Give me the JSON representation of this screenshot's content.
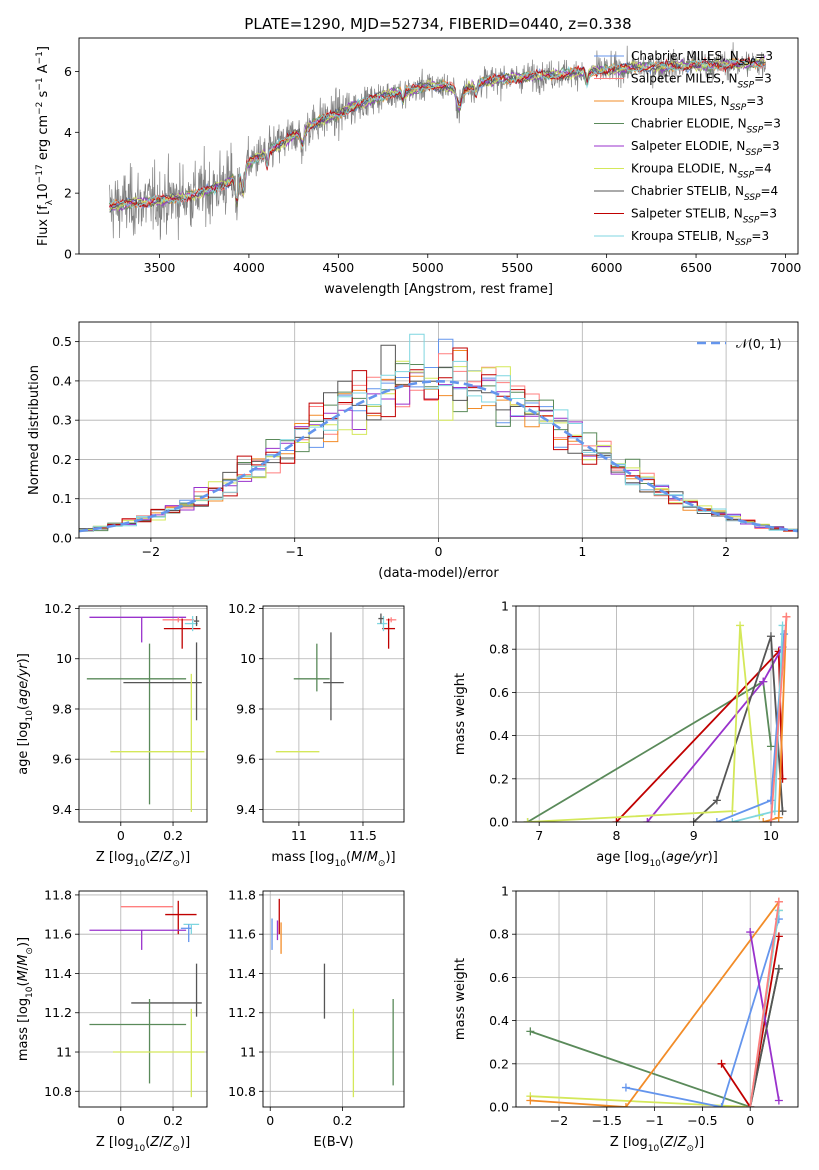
{
  "figure_title": "PLATE=1290, MJD=52734, FIBERID=0440, z=0.338",
  "model_colors": {
    "Chabrier MILES": "#6495ed",
    "Salpeter MILES": "#ff7f7f",
    "Kroupa MILES": "#f28c28",
    "Chabrier ELODIE": "#5a8a5a",
    "Salpeter ELODIE": "#9932cc",
    "Kroupa ELODIE": "#d4e85a",
    "Chabrier STELIB": "#555555",
    "Salpeter STELIB": "#c00000",
    "Kroupa STELIB": "#7fd6e0"
  },
  "chart_data": [
    {
      "id": "spectrum",
      "type": "line",
      "xlabel": "wavelength [Angstrom, rest frame]",
      "ylabel": "Flux [f_λ 10^-17 erg cm^-2 s^-1 A^-1]",
      "xlim": [
        3050,
        7070
      ],
      "ylim": [
        0,
        7.1
      ],
      "xticks": [
        3500,
        4000,
        4500,
        5000,
        5500,
        6000,
        6500,
        7000
      ],
      "yticks": [
        0,
        2,
        4,
        6
      ],
      "grid": false,
      "legend_position": "top-right",
      "data_color": "#808080",
      "continuum_points": {
        "x": [
          3220,
          3300,
          3400,
          3500,
          3600,
          3700,
          3800,
          3900,
          4000,
          4100,
          4200,
          4300,
          4400,
          4500,
          4600,
          4700,
          4800,
          4900,
          5000,
          5100,
          5200,
          5300,
          5400,
          5500,
          5600,
          5700,
          5800,
          5900,
          6000,
          6100,
          6200,
          6300,
          6400,
          6500,
          6600,
          6700,
          6800,
          6900
        ],
        "y": [
          1.55,
          1.65,
          1.7,
          1.75,
          1.85,
          1.95,
          2.15,
          2.4,
          3.0,
          3.35,
          3.7,
          4.1,
          4.4,
          4.6,
          4.9,
          5.1,
          5.3,
          5.35,
          5.55,
          5.5,
          5.4,
          5.65,
          5.75,
          5.8,
          5.85,
          5.9,
          5.95,
          6.0,
          6.05,
          6.1,
          6.15,
          6.15,
          6.2,
          6.2,
          6.2,
          6.25,
          6.25,
          6.3
        ]
      },
      "legend": [
        {
          "label": "Chabrier MILES, N_SSP=3",
          "color": "#6495ed"
        },
        {
          "label": "Salpeter MILES, N_SSP=3",
          "color": "#ff7f7f"
        },
        {
          "label": "Kroupa MILES, N_SSP=3",
          "color": "#f28c28"
        },
        {
          "label": "Chabrier ELODIE, N_SSP=3",
          "color": "#5a8a5a"
        },
        {
          "label": "Salpeter ELODIE, N_SSP=3",
          "color": "#9932cc"
        },
        {
          "label": "Kroupa ELODIE, N_SSP=4",
          "color": "#d4e85a"
        },
        {
          "label": "Chabrier STELIB, N_SSP=4",
          "color": "#555555"
        },
        {
          "label": "Salpeter STELIB, N_SSP=3",
          "color": "#c00000"
        },
        {
          "label": "Kroupa STELIB, N_SSP=3",
          "color": "#7fd6e0"
        }
      ]
    },
    {
      "id": "residuals",
      "type": "histogram",
      "xlabel": "(data-model)/error",
      "ylabel": "Normed distribution",
      "xlim": [
        -2.5,
        2.5
      ],
      "ylim": [
        0,
        0.55
      ],
      "xticks": [
        -2,
        -1,
        0,
        1,
        2
      ],
      "yticks": [
        0.0,
        0.1,
        0.2,
        0.3,
        0.4,
        0.5
      ],
      "grid": true,
      "legend_position": "top-right",
      "reference_label": "𝒩(0, 1)",
      "reference_color": "#6495ed",
      "bin_width": 0.1
    },
    {
      "id": "age_vs_Z",
      "type": "errorbar",
      "xlabel": "Z [log10(Z/Z⊙)]",
      "ylabel": "age [log10(age/yr)]",
      "xlim": [
        -0.16,
        0.33
      ],
      "ylim": [
        9.35,
        10.21
      ],
      "xticks": [
        0.0,
        0.2
      ],
      "yticks": [
        9.4,
        9.6,
        9.8,
        10.0,
        10.2
      ],
      "grid": true,
      "points": [
        {
          "model": "Salpeter ELODIE",
          "x": 0.08,
          "xerr": [
            0.2,
            0.17
          ],
          "y": 10.165,
          "yerr": [
            0.1,
            0.0
          ]
        },
        {
          "model": "Salpeter MILES",
          "x": 0.22,
          "xerr": [
            0.06,
            0.06
          ],
          "y": 10.155,
          "yerr": [
            0.01,
            0.01
          ]
        },
        {
          "model": "Salpeter STELIB",
          "x": 0.235,
          "xerr": [
            0.07,
            0.07
          ],
          "y": 10.12,
          "yerr": [
            0.08,
            0.04
          ]
        },
        {
          "model": "Kroupa STELIB",
          "x": 0.275,
          "xerr": [
            0.03,
            0.02
          ],
          "y": 10.14,
          "yerr": [
            0.03,
            0.03
          ]
        },
        {
          "model": "Chabrier STELIB",
          "x": 0.29,
          "xerr": [
            0.01,
            0.01
          ],
          "y": 10.15,
          "yerr": [
            0.02,
            0.02
          ]
        },
        {
          "model": "Chabrier ELODIE",
          "x": 0.11,
          "xerr": [
            0.24,
            0.14
          ],
          "y": 9.92,
          "yerr": [
            0.5,
            0.14
          ]
        },
        {
          "model": "Chabrier STELIB",
          "x": 0.29,
          "xerr": [
            0.28,
            0.02
          ],
          "y": 9.905,
          "yerr": [
            0.15,
            0.16
          ]
        },
        {
          "model": "Kroupa ELODIE",
          "x": 0.27,
          "xerr": [
            0.31,
            0.05
          ],
          "y": 9.63,
          "yerr": [
            0.24,
            0.31
          ]
        }
      ]
    },
    {
      "id": "age_vs_mass",
      "type": "errorbar",
      "xlabel": "mass [log10(M/M⊙)]",
      "ylabel": "",
      "xlim": [
        10.72,
        11.82
      ],
      "ylim": [
        9.35,
        10.21
      ],
      "xticks": [
        11.0,
        11.5
      ],
      "yticks": [
        9.4,
        9.6,
        9.8,
        10.0,
        10.2
      ],
      "grid": true,
      "points": [
        {
          "model": "Salpeter MILES",
          "x": 11.72,
          "xerr": [
            0.04,
            0.04
          ],
          "y": 10.155,
          "yerr": [
            0.01,
            0.01
          ]
        },
        {
          "model": "Salpeter STELIB",
          "x": 11.7,
          "xerr": [
            0.05,
            0.05
          ],
          "y": 10.12,
          "yerr": [
            0.08,
            0.04
          ]
        },
        {
          "model": "Kroupa STELIB",
          "x": 11.66,
          "xerr": [
            0.05,
            0.03
          ],
          "y": 10.14,
          "yerr": [
            0.03,
            0.03
          ]
        },
        {
          "model": "Chabrier STELIB",
          "x": 11.64,
          "xerr": [
            0.02,
            0.02
          ],
          "y": 10.16,
          "yerr": [
            0.02,
            0.02
          ]
        },
        {
          "model": "Chabrier ELODIE",
          "x": 11.14,
          "xerr": [
            0.18,
            0.1
          ],
          "y": 9.92,
          "yerr": [
            0.05,
            0.14
          ]
        },
        {
          "model": "Chabrier STELIB",
          "x": 11.25,
          "xerr": [
            0.06,
            0.1
          ],
          "y": 9.905,
          "yerr": [
            0.15,
            0.2
          ]
        },
        {
          "model": "Kroupa ELODIE",
          "x": 11.0,
          "xerr": [
            0.18,
            0.16
          ],
          "y": 9.63,
          "yerr": [
            0.0,
            0.0
          ]
        }
      ]
    },
    {
      "id": "weight_vs_age",
      "type": "line",
      "xlabel": "age [log10(age/yr)]",
      "ylabel": "mass weight",
      "xlim": [
        6.7,
        10.35
      ],
      "ylim": [
        0,
        1.0
      ],
      "xticks": [
        7,
        8,
        9,
        10
      ],
      "yticks": [
        0.0,
        0.2,
        0.4,
        0.6,
        0.8,
        1.0
      ],
      "grid": true,
      "series": [
        {
          "model": "Chabrier ELODIE",
          "x": [
            6.85,
            9.9,
            10.0
          ],
          "y": [
            0.0,
            0.65,
            0.35
          ]
        },
        {
          "model": "Salpeter STELIB",
          "x": [
            8.0,
            10.1,
            10.15
          ],
          "y": [
            0.0,
            0.79,
            0.2
          ]
        },
        {
          "model": "Salpeter ELODIE",
          "x": [
            8.4,
            9.9,
            10.15
          ],
          "y": [
            0.0,
            0.65,
            0.81
          ]
        },
        {
          "model": "Chabrier STELIB",
          "x": [
            9.0,
            9.3,
            10.0,
            10.15
          ],
          "y": [
            0.0,
            0.1,
            0.86,
            0.05
          ]
        },
        {
          "model": "Kroupa ELODIE",
          "x": [
            6.85,
            9.5,
            9.6,
            9.85
          ],
          "y": [
            0.0,
            0.05,
            0.91,
            0.03
          ]
        },
        {
          "model": "Chabrier MILES",
          "x": [
            9.3,
            10.0,
            10.17
          ],
          "y": [
            0.0,
            0.1,
            0.87
          ]
        },
        {
          "model": "Kroupa STELIB",
          "x": [
            9.5,
            10.05,
            10.15
          ],
          "y": [
            0.0,
            0.05,
            0.91
          ]
        },
        {
          "model": "Kroupa MILES",
          "x": [
            9.9,
            10.1,
            10.2
          ],
          "y": [
            0.0,
            0.02,
            0.95
          ]
        },
        {
          "model": "Salpeter MILES",
          "x": [
            10.0,
            10.2
          ],
          "y": [
            0.0,
            0.95
          ]
        }
      ]
    },
    {
      "id": "mass_vs_Z",
      "type": "errorbar",
      "xlabel": "Z [log10(Z/Z⊙)]",
      "ylabel": "mass [log10(M/M⊙)]",
      "xlim": [
        -0.16,
        0.33
      ],
      "ylim": [
        10.72,
        11.82
      ],
      "xticks": [
        0.0,
        0.2
      ],
      "yticks": [
        10.8,
        11.0,
        11.2,
        11.4,
        11.6,
        11.8
      ],
      "grid": true,
      "points": [
        {
          "model": "Salpeter MILES",
          "x": 0.2,
          "xerr": [
            0.2,
            0.0
          ],
          "y": 11.74,
          "yerr": [
            0.0,
            0.0
          ]
        },
        {
          "model": "Salpeter STELIB",
          "x": 0.22,
          "xerr": [
            0.05,
            0.07
          ],
          "y": 11.7,
          "yerr": [
            0.1,
            0.07
          ]
        },
        {
          "model": "Salpeter ELODIE",
          "x": 0.08,
          "xerr": [
            0.2,
            0.17
          ],
          "y": 11.62,
          "yerr": [
            0.1,
            0.0
          ]
        },
        {
          "model": "Kroupa STELIB",
          "x": 0.27,
          "xerr": [
            0.03,
            0.03
          ],
          "y": 11.65,
          "yerr": [
            0.05,
            0.0
          ]
        },
        {
          "model": "Chabrier MILES",
          "x": 0.26,
          "xerr": [
            0.03,
            0.01
          ],
          "y": 11.63,
          "yerr": [
            0.07,
            0.02
          ]
        },
        {
          "model": "Chabrier STELIB",
          "x": 0.29,
          "xerr": [
            0.25,
            0.02
          ],
          "y": 11.25,
          "yerr": [
            0.07,
            0.2
          ]
        },
        {
          "model": "Chabrier ELODIE",
          "x": 0.11,
          "xerr": [
            0.23,
            0.14
          ],
          "y": 11.14,
          "yerr": [
            0.3,
            0.13
          ]
        },
        {
          "model": "Kroupa ELODIE",
          "x": 0.27,
          "xerr": [
            0.3,
            0.05
          ],
          "y": 11.0,
          "yerr": [
            0.23,
            0.22
          ]
        }
      ]
    },
    {
      "id": "mass_vs_ebv",
      "type": "errorbar",
      "xlabel": "E(B-V)",
      "ylabel": "",
      "xlim": [
        -0.02,
        0.37
      ],
      "ylim": [
        10.72,
        11.82
      ],
      "xticks": [
        0.0,
        0.2
      ],
      "yticks": [
        10.8,
        11.0,
        11.2,
        11.4,
        11.6,
        11.8
      ],
      "grid": true,
      "points": [
        {
          "model": "Chabrier MILES",
          "x": 0.005,
          "xerr": [
            0,
            0
          ],
          "y": 11.6,
          "yerr": [
            0.08,
            0.08
          ]
        },
        {
          "model": "Salpeter STELIB",
          "x": 0.025,
          "xerr": [
            0,
            0
          ],
          "y": 11.7,
          "yerr": [
            0.1,
            0.08
          ]
        },
        {
          "model": "Kroupa MILES",
          "x": 0.03,
          "xerr": [
            0,
            0
          ],
          "y": 11.58,
          "yerr": [
            0.08,
            0.08
          ]
        },
        {
          "model": "Salpeter ELODIE",
          "x": 0.02,
          "xerr": [
            0,
            0
          ],
          "y": 11.63,
          "yerr": [
            0.06,
            0.04
          ]
        },
        {
          "model": "Chabrier STELIB",
          "x": 0.15,
          "xerr": [
            0,
            0
          ],
          "y": 11.31,
          "yerr": [
            0.14,
            0.14
          ]
        },
        {
          "model": "Kroupa ELODIE",
          "x": 0.23,
          "xerr": [
            0,
            0
          ],
          "y": 11.0,
          "yerr": [
            0.23,
            0.22
          ]
        },
        {
          "model": "Chabrier ELODIE",
          "x": 0.34,
          "xerr": [
            0,
            0
          ],
          "y": 11.05,
          "yerr": [
            0.22,
            0.22
          ]
        }
      ]
    },
    {
      "id": "weight_vs_Z",
      "type": "line",
      "xlabel": "Z [log10(Z/Z⊙)]",
      "ylabel": "mass weight",
      "xlim": [
        -2.45,
        0.5
      ],
      "ylim": [
        0,
        1.0
      ],
      "xticks": [
        -2.0,
        -1.5,
        -1.0,
        -0.5,
        0.0
      ],
      "yticks": [
        0.0,
        0.2,
        0.4,
        0.6,
        0.8,
        1.0
      ],
      "grid": true,
      "series": [
        {
          "model": "Chabrier ELODIE",
          "x": [
            -2.3,
            0.0,
            0.3
          ],
          "y": [
            0.35,
            0.0,
            0.64
          ]
        },
        {
          "model": "Kroupa ELODIE",
          "x": [
            -2.3,
            0.0,
            0.3
          ],
          "y": [
            0.05,
            0.0,
            0.91
          ]
        },
        {
          "model": "Kroupa MILES",
          "x": [
            -2.3,
            -1.3,
            0.3
          ],
          "y": [
            0.03,
            0.0,
            0.95
          ]
        },
        {
          "model": "Chabrier MILES",
          "x": [
            -1.3,
            -0.3,
            0.3
          ],
          "y": [
            0.09,
            0.0,
            0.87
          ]
        },
        {
          "model": "Salpeter STELIB",
          "x": [
            -0.3,
            0.0,
            0.3
          ],
          "y": [
            0.2,
            0.0,
            0.79
          ]
        },
        {
          "model": "Salpeter ELODIE",
          "x": [
            0.0,
            0.3
          ],
          "y": [
            0.81,
            0.03
          ]
        },
        {
          "model": "Chabrier STELIB",
          "x": [
            0.0,
            0.3
          ],
          "y": [
            0.0,
            0.64
          ]
        },
        {
          "model": "Kroupa STELIB",
          "x": [
            0.0,
            0.3
          ],
          "y": [
            0.0,
            0.91
          ]
        },
        {
          "model": "Salpeter MILES",
          "x": [
            0.0,
            0.3
          ],
          "y": [
            0.0,
            0.95
          ]
        }
      ]
    }
  ]
}
